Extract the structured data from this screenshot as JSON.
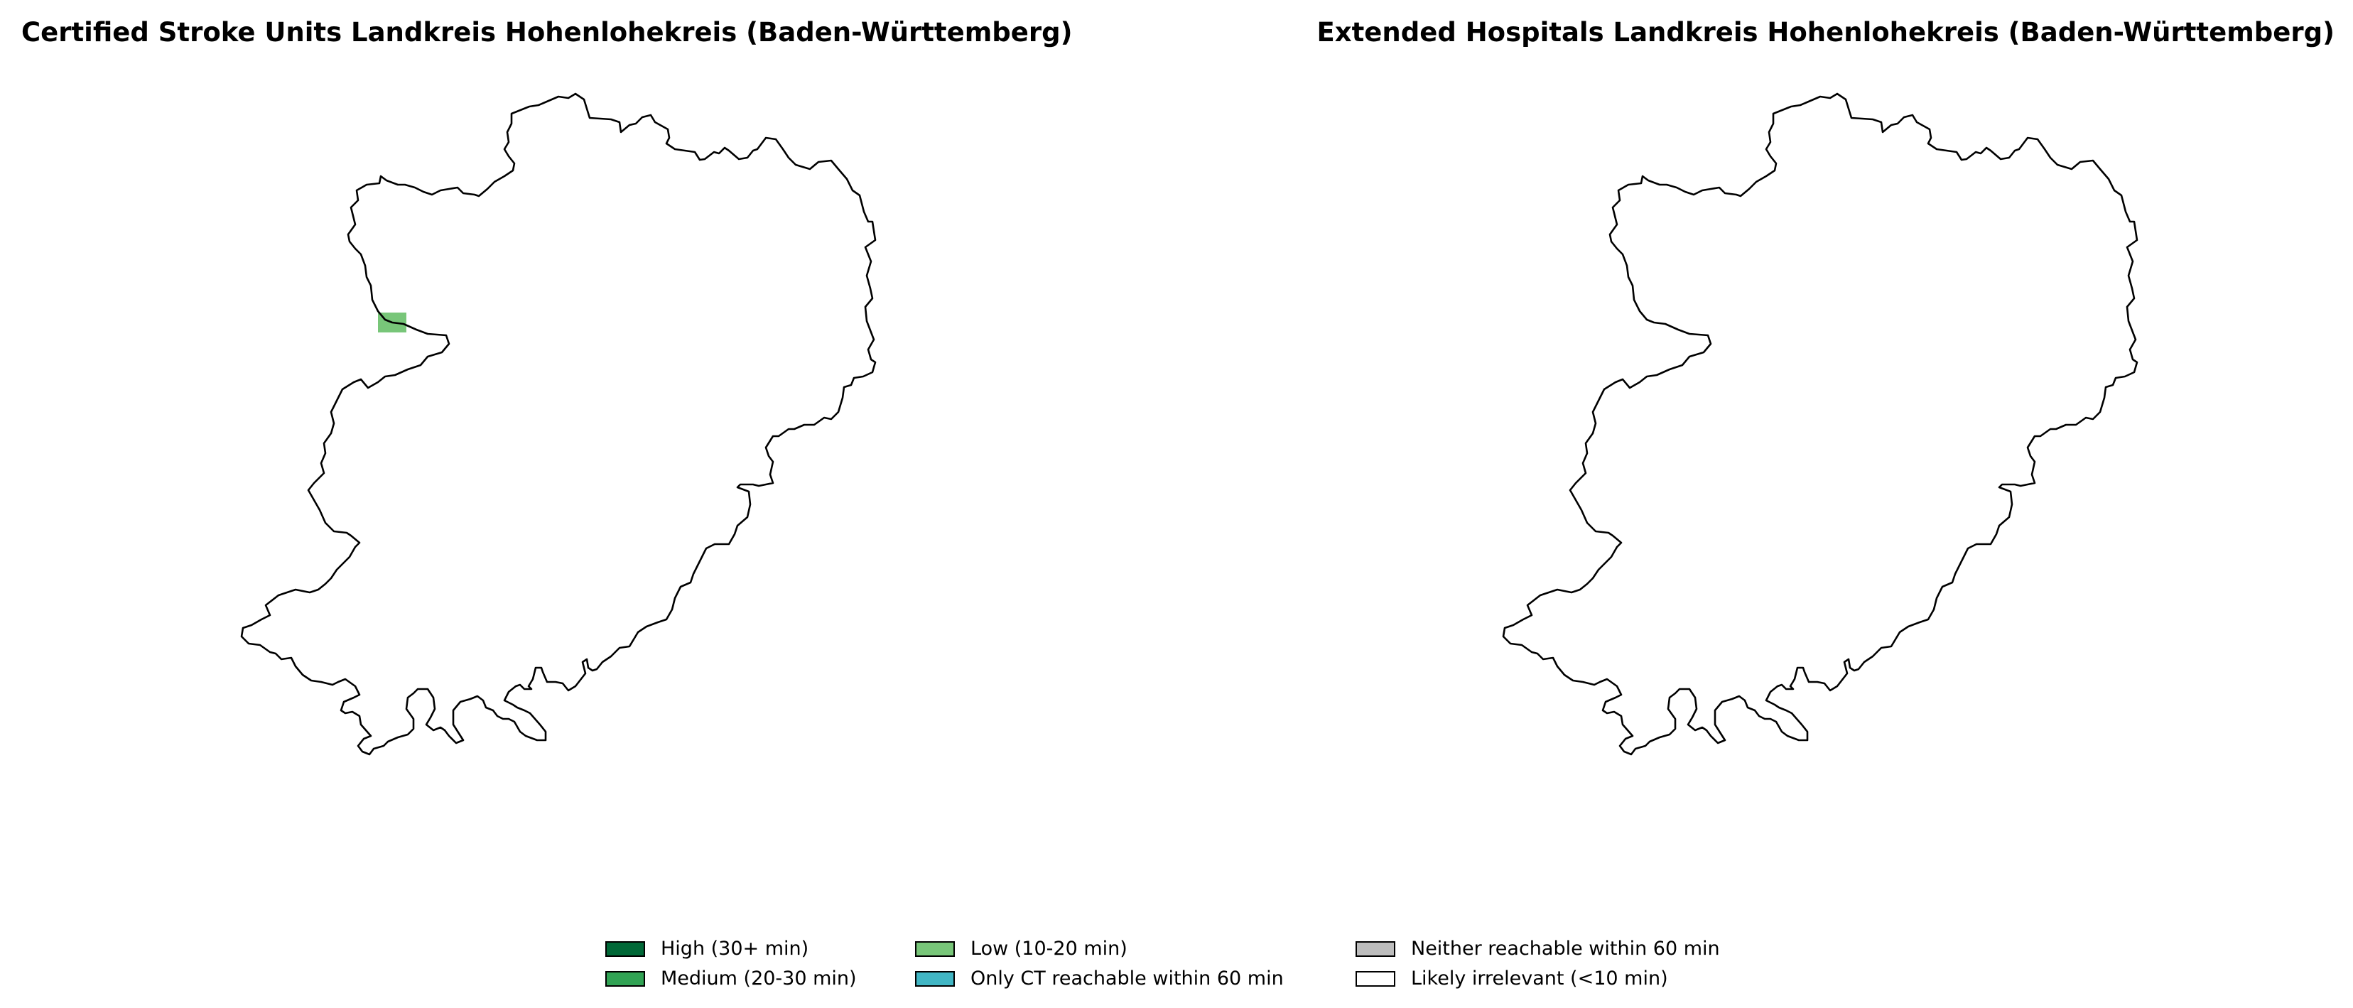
{
  "maps": {
    "left": {
      "title": "Certified Stroke Units Landkreis Hohenlohekreis (Baden-Württemberg)"
    },
    "right": {
      "title": "Extended Hospitals Landkreis Hohenlohekreis (Baden-Württemberg)"
    }
  },
  "legend": {
    "items": [
      {
        "label": "High (30+ min)",
        "color": "#006837"
      },
      {
        "label": "Medium (20-30 min)",
        "color": "#31a354"
      },
      {
        "label": "Low (10-20 min)",
        "color": "#78c679"
      },
      {
        "label": "Only CT reachable within 60 min",
        "color": "#41b6c4"
      },
      {
        "label": "Neither reachable within 60 min",
        "color": "#bdbdbd"
      },
      {
        "label": "Likely irrelevant (<10 min)",
        "color": "#ffffff"
      }
    ]
  },
  "colors": {
    "boundary": "#000000",
    "background": "#ffffff",
    "highlight_cell": "#78c679"
  }
}
